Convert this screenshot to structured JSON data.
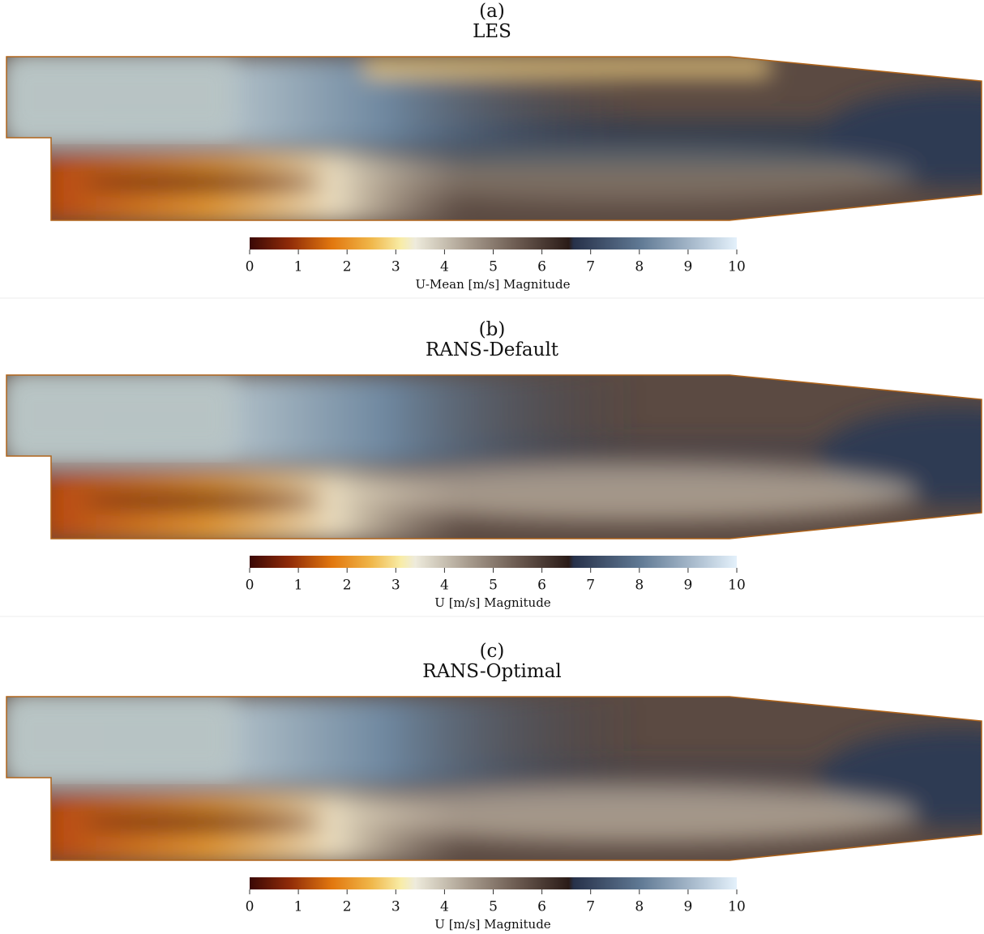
{
  "panels": [
    {
      "label": "(a)",
      "title": "LES",
      "colorbar": {
        "label": "U-Mean [m/s] Magnitude",
        "lim": [
          0,
          10
        ],
        "ticks": [
          0,
          1,
          2,
          3,
          4,
          5,
          6,
          7,
          8,
          9,
          10
        ]
      }
    },
    {
      "label": "(b)",
      "title": "RANS-Default",
      "colorbar": {
        "label": "U [m/s] Magnitude",
        "lim": [
          0,
          10
        ],
        "ticks": [
          0,
          1,
          2,
          3,
          4,
          5,
          6,
          7,
          8,
          9,
          10
        ]
      }
    },
    {
      "label": "(c)",
      "title": "RANS-Optimal",
      "colorbar": {
        "label": "U [m/s] Magnitude",
        "lim": [
          0,
          10
        ],
        "ticks": [
          0,
          1,
          2,
          3,
          4,
          5,
          6,
          7,
          8,
          9,
          10
        ]
      }
    }
  ]
}
